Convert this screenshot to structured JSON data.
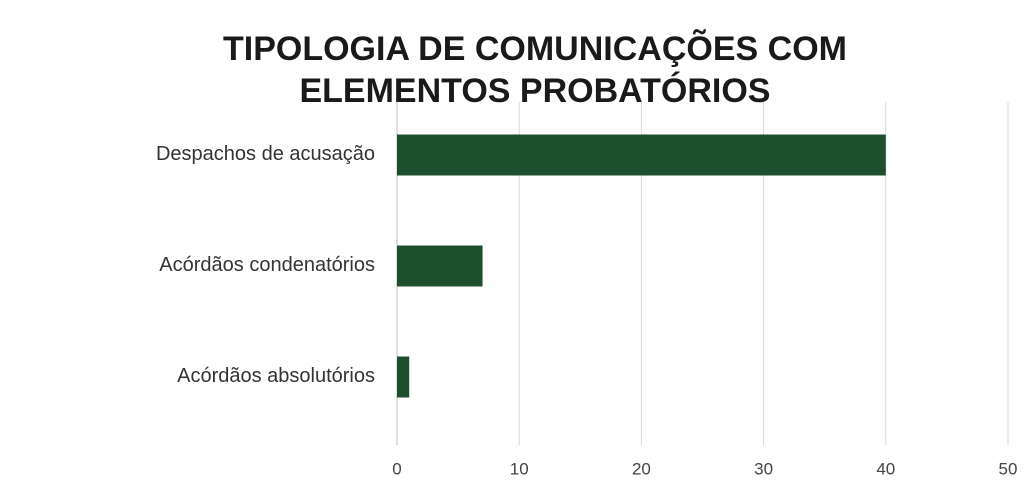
{
  "chart_data": {
    "type": "barh",
    "title": "TIPOLOGIA DE COMUNICAÇÕES COM ELEMENTOS PROBATÓRIOS",
    "categories": [
      "Despachos de acusação",
      "Acórdãos condenatórios",
      "Acórdãos absolutórios"
    ],
    "values": [
      40,
      7,
      1
    ],
    "color": "#1d4f2f",
    "xlim": [
      0,
      50
    ],
    "xticks": [
      0,
      10,
      20,
      30,
      40,
      50
    ],
    "grid": true
  }
}
